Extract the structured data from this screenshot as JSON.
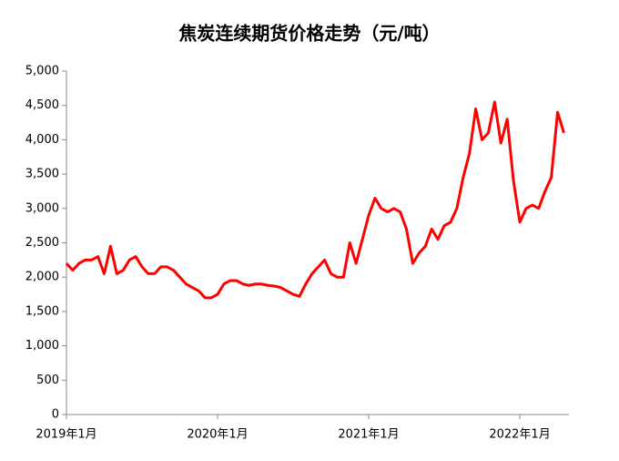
{
  "chart_data": {
    "type": "line",
    "title": "焦炭连续期货价格走势（元/吨）",
    "categories": [
      "2019年1月",
      null,
      null,
      null,
      null,
      null,
      null,
      null,
      null,
      null,
      null,
      null,
      null,
      null,
      null,
      null,
      null,
      null,
      null,
      null,
      null,
      null,
      null,
      null,
      "2020年1月",
      null,
      null,
      null,
      null,
      null,
      null,
      null,
      null,
      null,
      null,
      null,
      null,
      null,
      null,
      null,
      null,
      null,
      null,
      null,
      null,
      null,
      null,
      null,
      "2021年1月",
      null,
      null,
      null,
      null,
      null,
      null,
      null,
      null,
      null,
      null,
      null,
      null,
      null,
      null,
      null,
      null,
      null,
      null,
      null,
      null,
      null,
      null,
      null,
      "2022年1月",
      null,
      null,
      null,
      null,
      null,
      null,
      null
    ],
    "series": [
      {
        "color": "#ff0000",
        "values": [
          2200,
          2100,
          2200,
          2250,
          2250,
          2300,
          2050,
          2450,
          2050,
          2100,
          2250,
          2300,
          2150,
          2050,
          2050,
          2150,
          2150,
          2100,
          2000,
          1900,
          1850,
          1800,
          1700,
          1700,
          1750,
          1900,
          1950,
          1950,
          1900,
          1880,
          1900,
          1900,
          1880,
          1870,
          1850,
          1800,
          1750,
          1720,
          1900,
          2050,
          2150,
          2250,
          2050,
          2000,
          2000,
          2500,
          2200,
          2550,
          2900,
          3150,
          3000,
          2950,
          3000,
          2950,
          2700,
          2200,
          2350,
          2450,
          2700,
          2550,
          2750,
          2800,
          3000,
          3450,
          3800,
          4450,
          4000,
          4100,
          4550,
          3950,
          4300,
          3400,
          2800,
          3000,
          3050,
          3000,
          3250,
          3450,
          4400,
          4100
        ]
      }
    ],
    "ylim": [
      0,
      5000
    ],
    "yticks": [
      0,
      500,
      {
        "value": 1000,
        "label": "1,000"
      },
      {
        "value": 1500,
        "label": "1,500"
      },
      {
        "value": 2000,
        "label": "2,000"
      },
      {
        "value": 2500,
        "label": "2,500"
      },
      {
        "value": 3000,
        "label": "3,000"
      },
      {
        "value": 3500,
        "label": "3,500"
      },
      {
        "value": 4000,
        "label": "4,000"
      },
      {
        "value": 4500,
        "label": "4,500"
      },
      {
        "value": 5000,
        "label": "5,000"
      }
    ]
  }
}
